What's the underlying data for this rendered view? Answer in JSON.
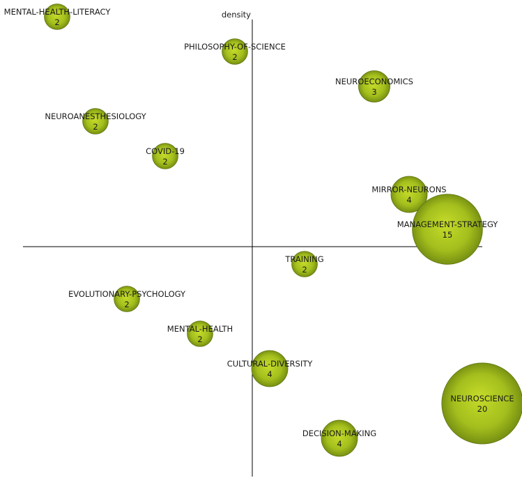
{
  "chart_data": {
    "type": "scatter",
    "subtype": "bubble",
    "ylabel": "density",
    "bubble_color": "#9ab515",
    "series": [
      {
        "points": [
          {
            "label": "MENTAL-HEALTH-LITERACY",
            "count": 2,
            "x": -5.6,
            "y": 6.6
          },
          {
            "label": "PHILOSOPHY-OF-SCIENCE",
            "count": 2,
            "x": -0.5,
            "y": 5.6
          },
          {
            "label": "NEUROECONOMICS",
            "count": 3,
            "x": 3.5,
            "y": 4.6
          },
          {
            "label": "NEUROANESTHESIOLOGY",
            "count": 2,
            "x": -4.5,
            "y": 3.6
          },
          {
            "label": "COVID-19",
            "count": 2,
            "x": -2.5,
            "y": 2.6
          },
          {
            "label": "MIRROR-NEURONS",
            "count": 4,
            "x": 4.5,
            "y": 1.5
          },
          {
            "label": "MANAGEMENT-STRATEGY",
            "count": 15,
            "x": 5.6,
            "y": 0.5
          },
          {
            "label": "TRAINING",
            "count": 2,
            "x": 1.5,
            "y": -0.5
          },
          {
            "label": "EVOLUTIONARY-PSYCHOLOGY",
            "count": 2,
            "x": -3.6,
            "y": -1.5
          },
          {
            "label": "MENTAL-HEALTH",
            "count": 2,
            "x": -1.5,
            "y": -2.5
          },
          {
            "label": "CULTURAL-DIVERSITY",
            "count": 4,
            "x": 0.5,
            "y": -3.5
          },
          {
            "label": "NEUROSCIENCE",
            "count": 20,
            "x": 6.6,
            "y": -4.5
          },
          {
            "label": "DECISION-MAKING",
            "count": 4,
            "x": 2.5,
            "y": -5.5
          }
        ]
      }
    ]
  }
}
